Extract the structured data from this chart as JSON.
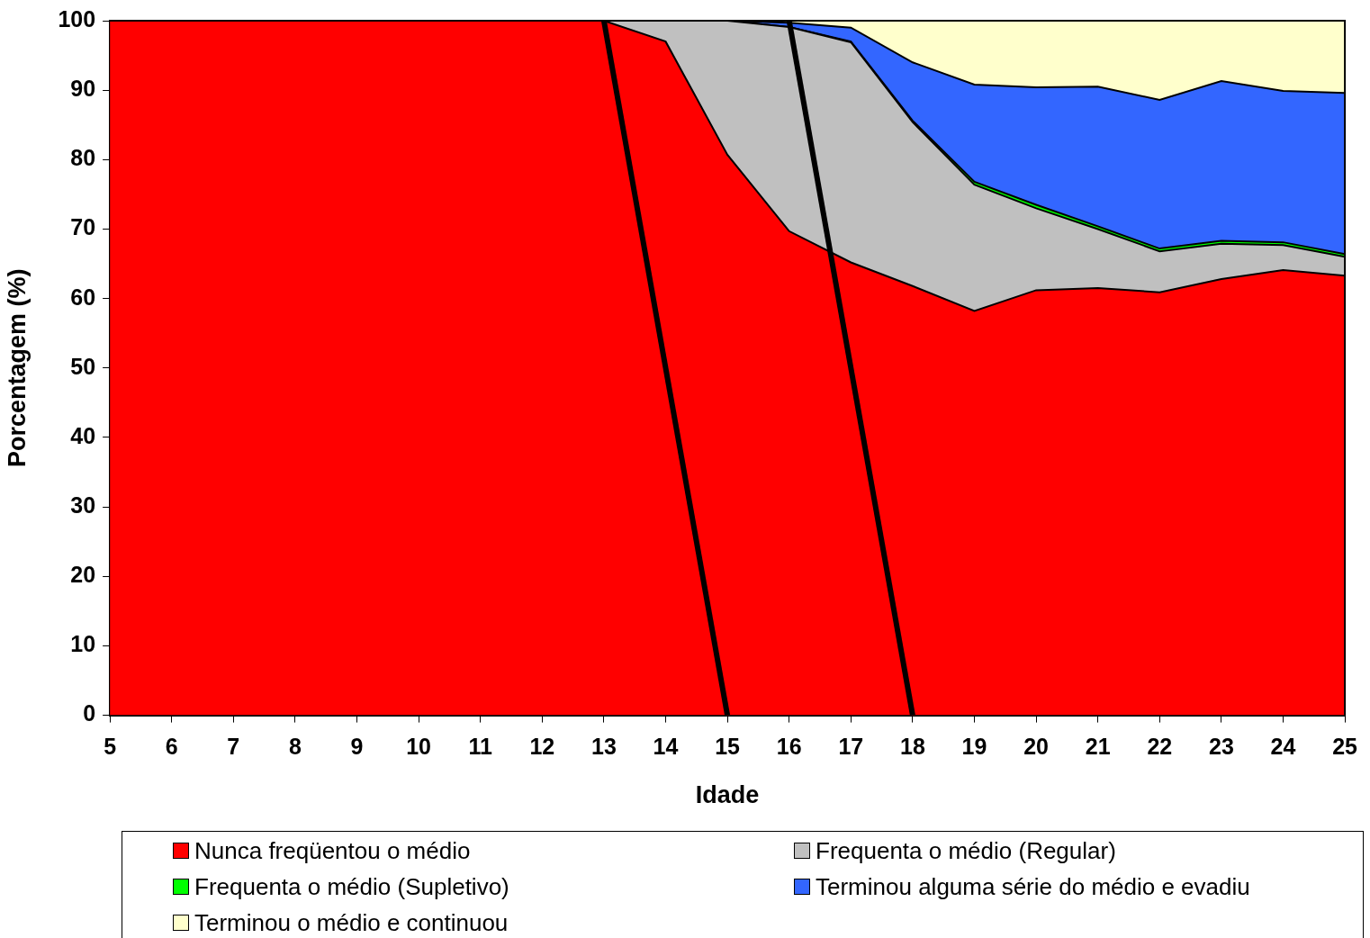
{
  "chart_data": {
    "type": "area",
    "stacked": true,
    "xlabel": "Idade",
    "ylabel": "Porcentagem (%)",
    "x": [
      5,
      6,
      7,
      8,
      9,
      10,
      11,
      12,
      13,
      14,
      15,
      16,
      17,
      18,
      19,
      20,
      21,
      22,
      23,
      24,
      25
    ],
    "xlim": [
      5,
      25
    ],
    "xticks": [
      5,
      6,
      7,
      8,
      9,
      10,
      11,
      12,
      13,
      14,
      15,
      16,
      17,
      18,
      19,
      20,
      21,
      22,
      23,
      24,
      25
    ],
    "ylim": [
      0,
      100
    ],
    "yticks": [
      0,
      10,
      20,
      30,
      40,
      50,
      60,
      70,
      80,
      90,
      100
    ],
    "legend": "bottom",
    "series": [
      {
        "name": "Nunca freqüentou o médio",
        "color": "#ff0000",
        "values": [
          100,
          100,
          100,
          100,
          100,
          100,
          100,
          100,
          100,
          97.0,
          80.7,
          69.7,
          65.2,
          61.8,
          58.2,
          61.2,
          61.5,
          60.9,
          62.8,
          64.1,
          63.3
        ]
      },
      {
        "name": "Frequenta o médio (Regular)",
        "color": "#c0c0c0",
        "values": [
          0,
          0,
          0,
          0,
          0,
          0,
          0,
          0,
          0,
          3.0,
          19.3,
          29.4,
          31.7,
          23.6,
          18.2,
          11.8,
          8.5,
          5.9,
          5.1,
          3.6,
          2.7
        ]
      },
      {
        "name": "Frequenta o médio (Supletivo)",
        "color": "#00ff00",
        "values": [
          0,
          0,
          0,
          0,
          0,
          0,
          0,
          0,
          0,
          0,
          0,
          0,
          0.1,
          0.2,
          0.4,
          0.5,
          0.4,
          0.4,
          0.4,
          0.4,
          0.4
        ]
      },
      {
        "name": "Terminou alguma série do médio e evadiu",
        "color": "#3366ff",
        "values": [
          0,
          0,
          0,
          0,
          0,
          0,
          0,
          0,
          0,
          0,
          0,
          0.6,
          2.0,
          8.4,
          14.0,
          16.9,
          20.1,
          21.4,
          23.0,
          21.8,
          23.2
        ]
      },
      {
        "name": "Terminou o médio e continuou",
        "color": "#ffffcc",
        "values": [
          0,
          0,
          0,
          0,
          0,
          0,
          0,
          0,
          0,
          0,
          0,
          0.3,
          1.0,
          6.0,
          9.2,
          9.6,
          9.5,
          11.4,
          8.7,
          10.1,
          10.4
        ]
      },
      {
        "type": "line",
        "color": "#000000",
        "x": [
          13,
          15
        ],
        "values": [
          100,
          0
        ]
      },
      {
        "type": "line",
        "color": "#000000",
        "x": [
          16,
          18
        ],
        "values": [
          100,
          0
        ]
      }
    ]
  }
}
